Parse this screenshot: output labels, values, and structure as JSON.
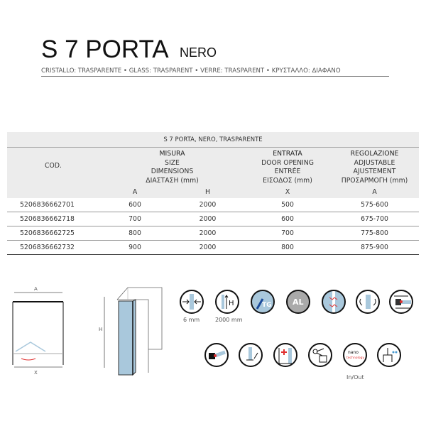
{
  "header": {
    "title": "S 7 PORTA",
    "color": "NERO",
    "subtitle": "CRISTALLO: TRASPARENTE • GLASS: TRASPARENT • VERRE: TRASPARENT • ΚΡΥΣΤΑΛΛΟ: ΔΙΑΦΑΝΟ"
  },
  "table": {
    "caption": "S 7 PORTA, NERO, TRASPARENTE",
    "cod": "COD.",
    "misura": [
      "MISURA",
      "SIZE",
      "DIMENSIONS",
      "ΔΙΑΣΤΑΣΗ (mm)"
    ],
    "entrata": [
      "ENTRATA",
      "DOOR OPENING",
      "ENTRÉE",
      "ΕΙΣΟΔΟΣ (mm)"
    ],
    "regolazione": [
      "REGOLAZIONE",
      "ADJUSTABLE",
      "AJUSTEMENT",
      "ΠΡΟΣΑΡΜΟΓΗ (mm)"
    ],
    "subheaders": [
      "A",
      "H",
      "X",
      "A"
    ],
    "rows": [
      [
        "5206836662701",
        "600",
        "2000",
        "500",
        "575-600"
      ],
      [
        "5206836662718",
        "700",
        "2000",
        "600",
        "675-700"
      ],
      [
        "5206836662725",
        "800",
        "2000",
        "700",
        "775-800"
      ],
      [
        "5206836662732",
        "900",
        "2000",
        "800",
        "875-900"
      ]
    ]
  },
  "diagram": {
    "a": "A",
    "x": "X",
    "h": "H"
  },
  "icons": {
    "row1": [
      "glass-thickness-icon",
      "height-icon",
      "tempered-glass-icon",
      "aluminium-icon",
      "safety-film-icon",
      "reversible-icon",
      "adjustable-profile-icon"
    ],
    "row2": [
      "pivot-hinge-icon",
      "seal-icon",
      "made-to-measure-icon",
      "cut-to-size-icon",
      "nano-technology-icon",
      "water-seal-icon"
    ],
    "tg": "TG",
    "al": "AL",
    "nano": "nano",
    "technology": "technology",
    "thickness_label": "6 mm",
    "height_label": "2000 mm",
    "inout_label": "In/Out"
  },
  "colors": {
    "glass": "#a9c8dc",
    "accent": "#e03030"
  }
}
